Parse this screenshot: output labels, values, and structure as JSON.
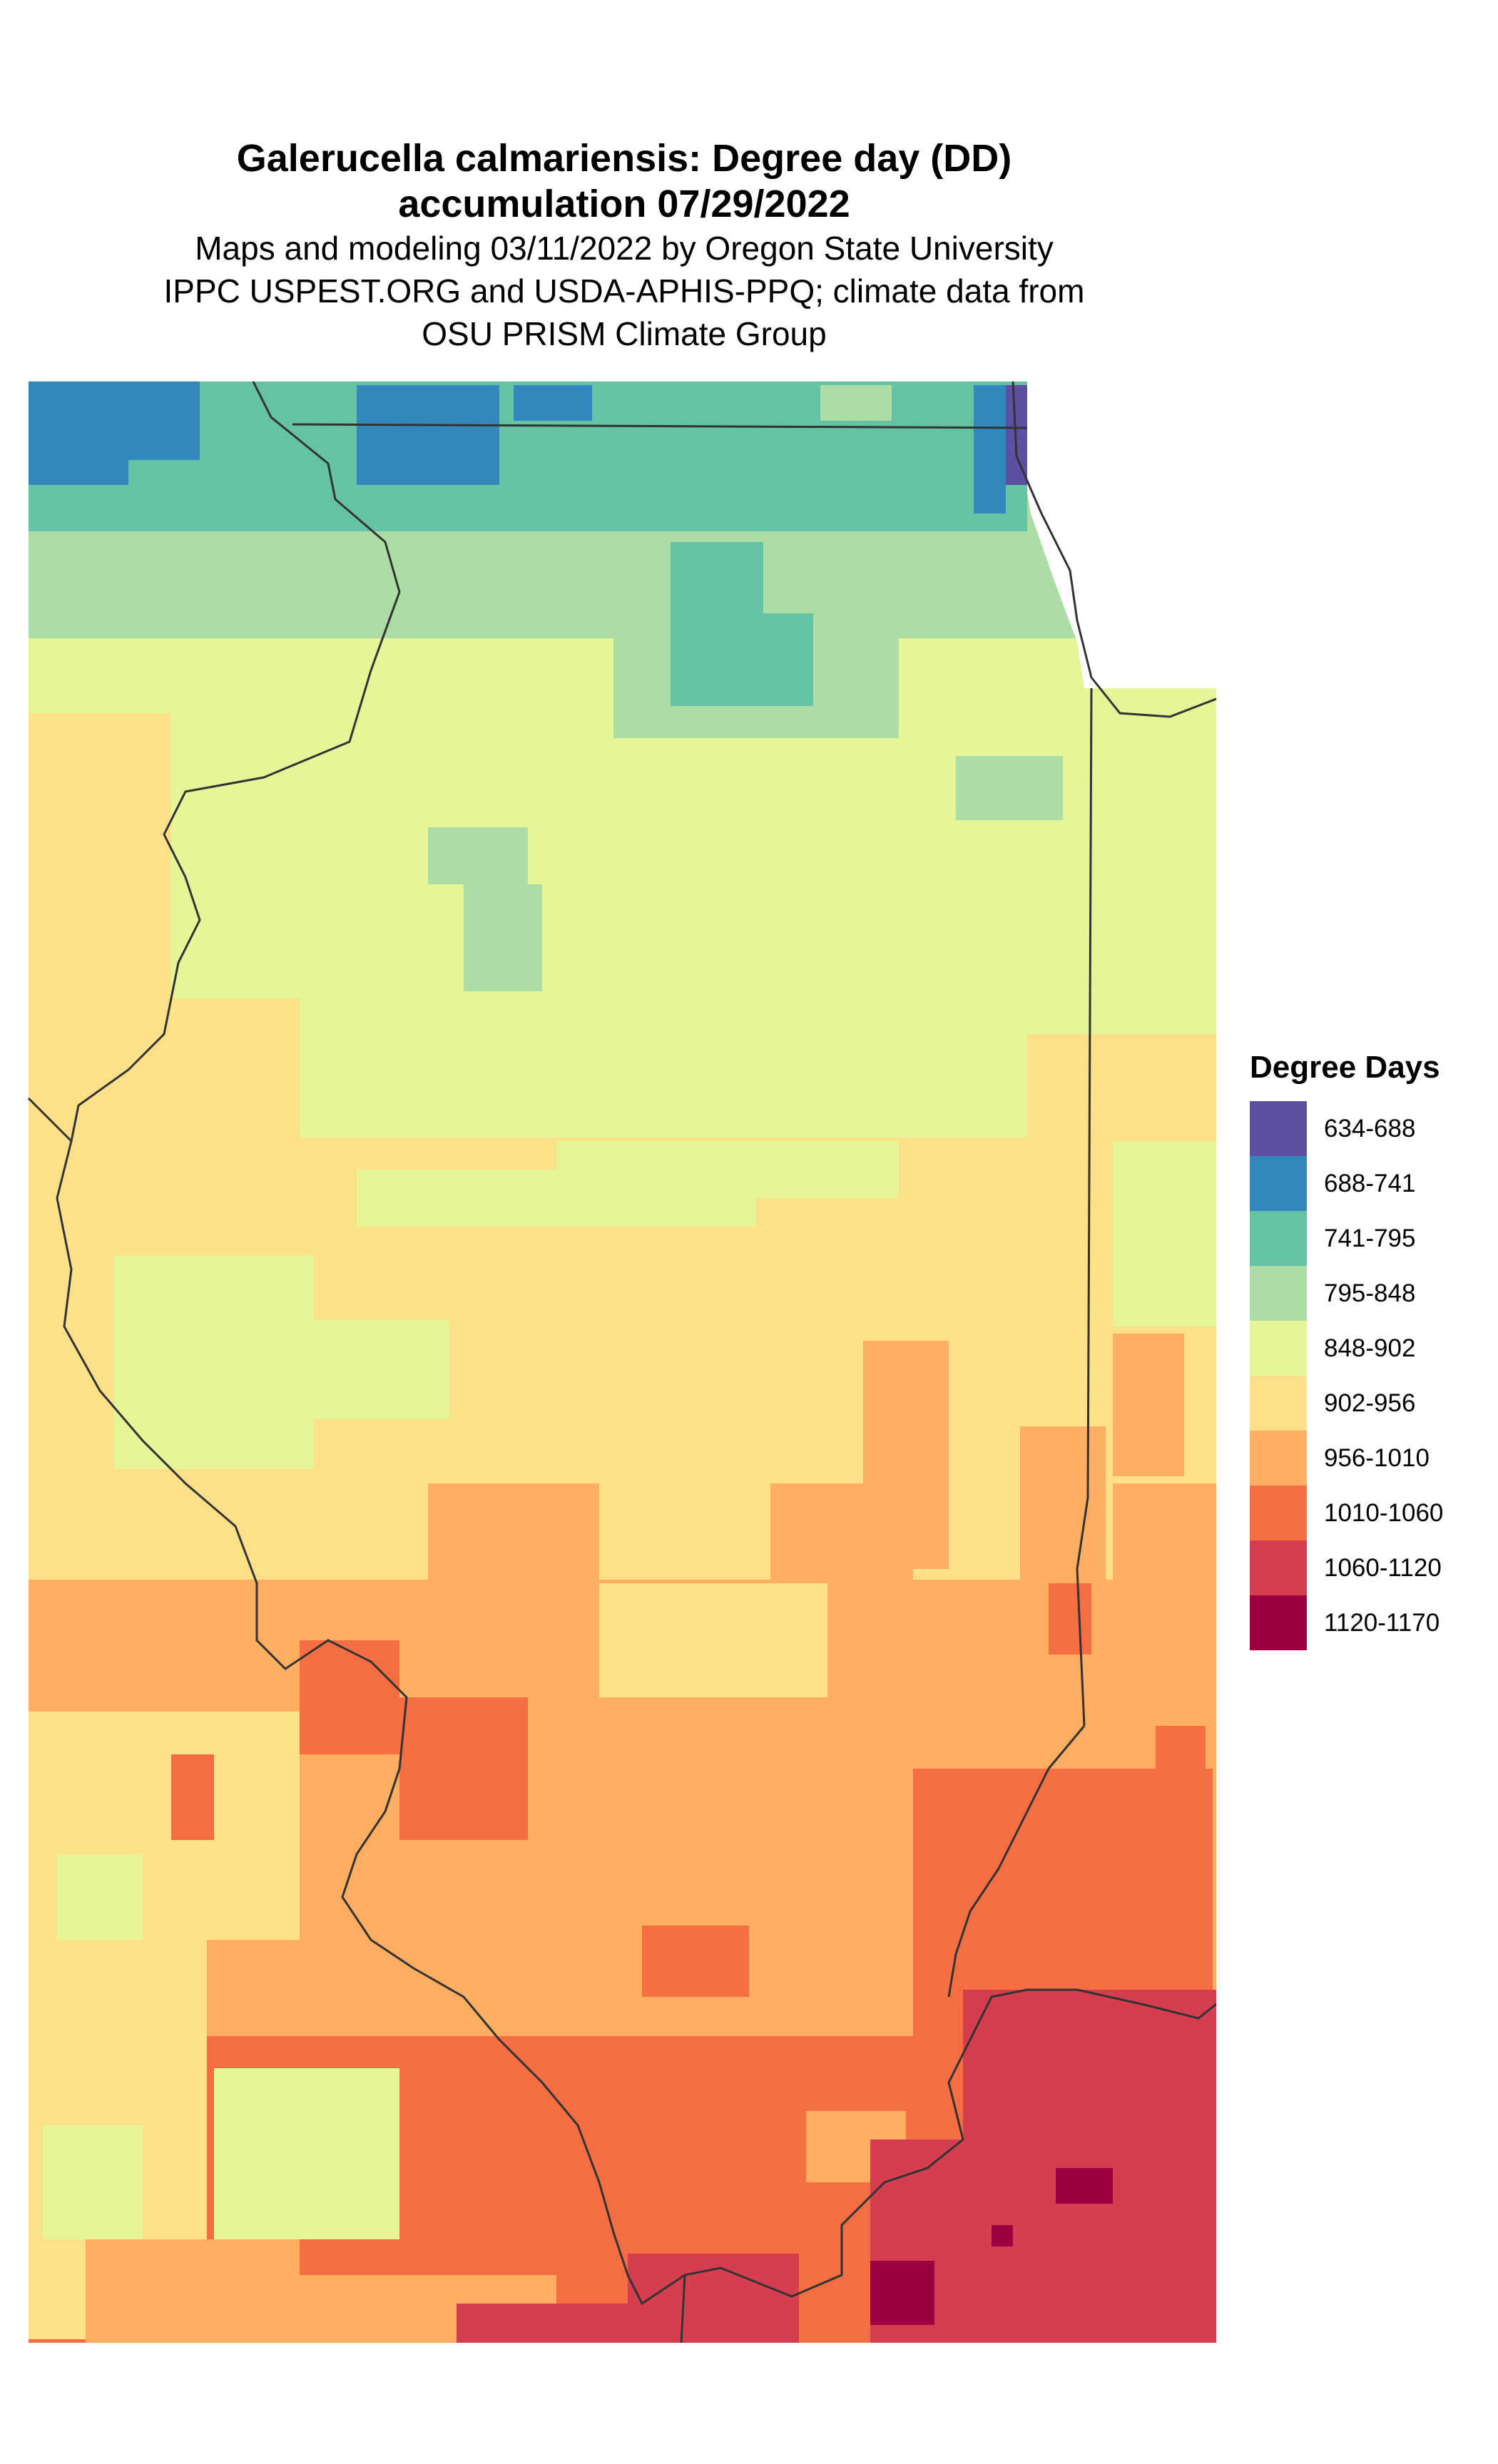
{
  "title": {
    "lines": [
      "Galerucella calmariensis: Degree day (DD)",
      "accumulation 07/29/2022"
    ],
    "subtitle_lines": [
      "Maps and modeling 03/11/2022 by Oregon State University",
      "IPPC USPEST.ORG and USDA-APHIS-PPQ; climate data from",
      "OSU PRISM Climate Group"
    ]
  },
  "legend": {
    "title": "Degree Days",
    "items": [
      {
        "label": "634-688",
        "color": "#5E4FA2"
      },
      {
        "label": "688-741",
        "color": "#3288BD"
      },
      {
        "label": "741-795",
        "color": "#66C2A5"
      },
      {
        "label": "795-848",
        "color": "#ABDDA4"
      },
      {
        "label": "848-902",
        "color": "#E6F598"
      },
      {
        "label": "902-956",
        "color": "#FEE08B"
      },
      {
        "label": "956-1010",
        "color": "#FDAE61"
      },
      {
        "label": "1010-1060",
        "color": "#F46D43"
      },
      {
        "label": "1060-1120",
        "color": "#D53E4F"
      },
      {
        "label": "1120-1170",
        "color": "#9E0142"
      }
    ]
  }
}
